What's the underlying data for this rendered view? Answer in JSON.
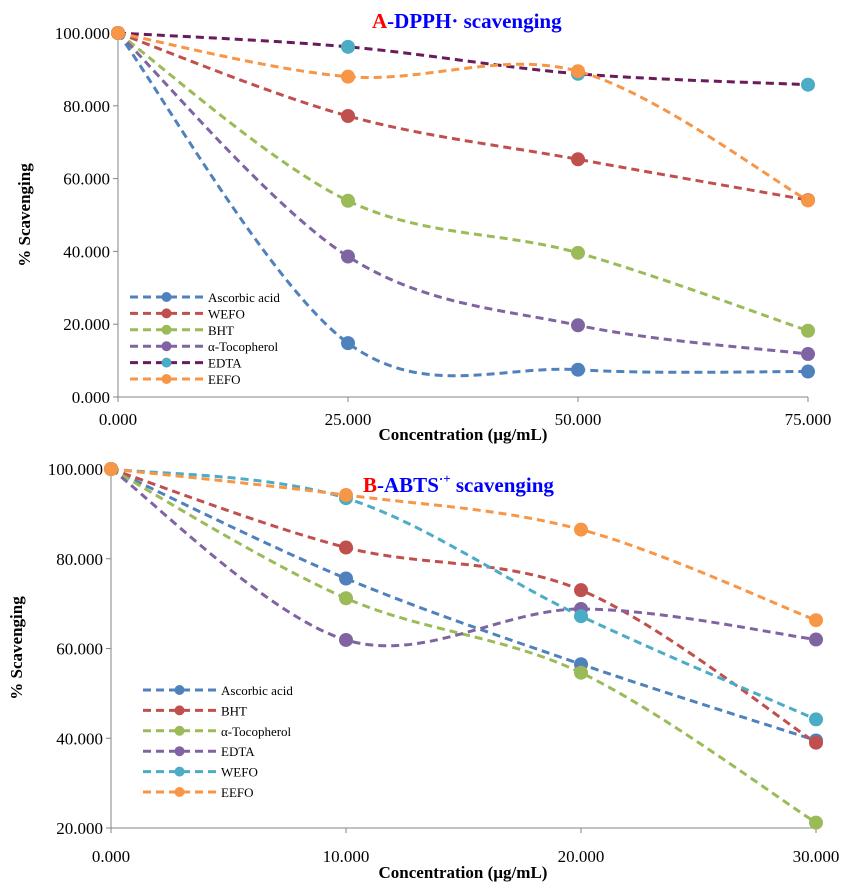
{
  "chart_data": [
    {
      "type": "line",
      "title_prefix": "A",
      "title_prefix_color": "#FF0000",
      "title_main": "-DPPH·  scavenging",
      "title_main_color": "#0000FF",
      "xlabel": "Concentration (µg/mL)",
      "ylabel": "% Scavenging",
      "x": [
        0,
        25,
        50,
        75
      ],
      "x_tick_labels": [
        "0.000",
        "25.000",
        "50.000",
        "75.000"
      ],
      "xlim": [
        0,
        75
      ],
      "ylim": [
        0,
        100
      ],
      "y_ticks": [
        0,
        20,
        40,
        60,
        80,
        100
      ],
      "y_tick_labels": [
        "0.000",
        "20.000",
        "40.000",
        "60.000",
        "80.000",
        "100.000"
      ],
      "legend_position": "bottom-left",
      "series": [
        {
          "name": "Ascorbic acid",
          "color": "#4F81BD",
          "values": [
            100,
            14.8,
            7.5,
            7.0
          ]
        },
        {
          "name": "WEFO",
          "color": "#C0504D",
          "values": [
            100,
            77.2,
            65.3,
            54.1
          ]
        },
        {
          "name": "BHT",
          "color": "#9BBB59",
          "values": [
            100,
            53.9,
            39.6,
            18.2
          ]
        },
        {
          "name": "α-Tocopherol",
          "color": "#8064A2",
          "values": [
            100,
            38.6,
            19.7,
            11.8
          ]
        },
        {
          "name": "EDTA",
          "color": "#6A1B5C",
          "marker_color": "#4BACC6",
          "values": [
            100,
            96.2,
            88.8,
            85.8
          ]
        },
        {
          "name": "EEFO",
          "color": "#F79646",
          "values": [
            100,
            88.0,
            89.5,
            54.0
          ]
        }
      ]
    },
    {
      "type": "line",
      "title_prefix": "B",
      "title_prefix_color": "#FF0000",
      "title_main": "-ABTS",
      "title_superscript": "·+",
      "title_suffix": " scavenging",
      "title_main_color": "#0000FF",
      "xlabel": "Concentration (µg/mL)",
      "ylabel": "% Scavenging",
      "x": [
        0,
        10,
        20,
        30
      ],
      "x_tick_labels": [
        "0.000",
        "10.000",
        "20.000",
        "30.000"
      ],
      "xlim": [
        0,
        30
      ],
      "ylim": [
        20,
        100
      ],
      "y_ticks": [
        20,
        40,
        60,
        80,
        100
      ],
      "y_tick_labels": [
        "20.000",
        "40.000",
        "60.000",
        "80.000",
        "100.000"
      ],
      "legend_position": "bottom-left",
      "series": [
        {
          "name": "Ascorbic acid",
          "color": "#4F81BD",
          "values": [
            100,
            75.6,
            56.5,
            39.5
          ]
        },
        {
          "name": "BHT",
          "color": "#C0504D",
          "values": [
            100,
            82.5,
            73.0,
            39.0
          ]
        },
        {
          "name": "α-Tocopherol",
          "color": "#9BBB59",
          "values": [
            100,
            71.2,
            54.6,
            21.2
          ]
        },
        {
          "name": "EDTA",
          "color": "#8064A2",
          "values": [
            100,
            61.9,
            68.8,
            62.0
          ]
        },
        {
          "name": "WEFO",
          "color": "#4BACC6",
          "values": [
            100,
            93.5,
            67.2,
            44.2
          ]
        },
        {
          "name": "EEFO",
          "color": "#F79646",
          "values": [
            100,
            94.2,
            86.5,
            66.3
          ]
        }
      ]
    }
  ]
}
